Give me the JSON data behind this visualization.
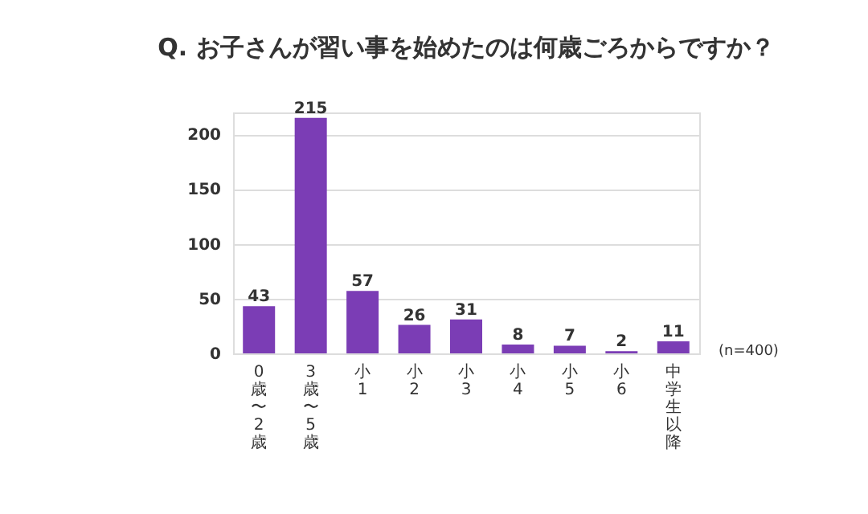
{
  "chart_data": {
    "type": "bar",
    "title": "Q.  お子さんが習い事を始めたのは何歳ごろからですか？",
    "categories": [
      "0歳〜2歳",
      "3歳〜5歳",
      "小1",
      "小2",
      "小3",
      "小4",
      "小5",
      "小6",
      "中学生以降"
    ],
    "values": [
      43,
      215,
      57,
      26,
      31,
      8,
      7,
      2,
      11
    ],
    "color": "#7b3db5",
    "ylim": [
      0,
      220
    ],
    "yticks": [
      0,
      50,
      100,
      150,
      200
    ],
    "grid": "y",
    "data_labels": true,
    "annotations": [
      "(n=400)"
    ]
  }
}
